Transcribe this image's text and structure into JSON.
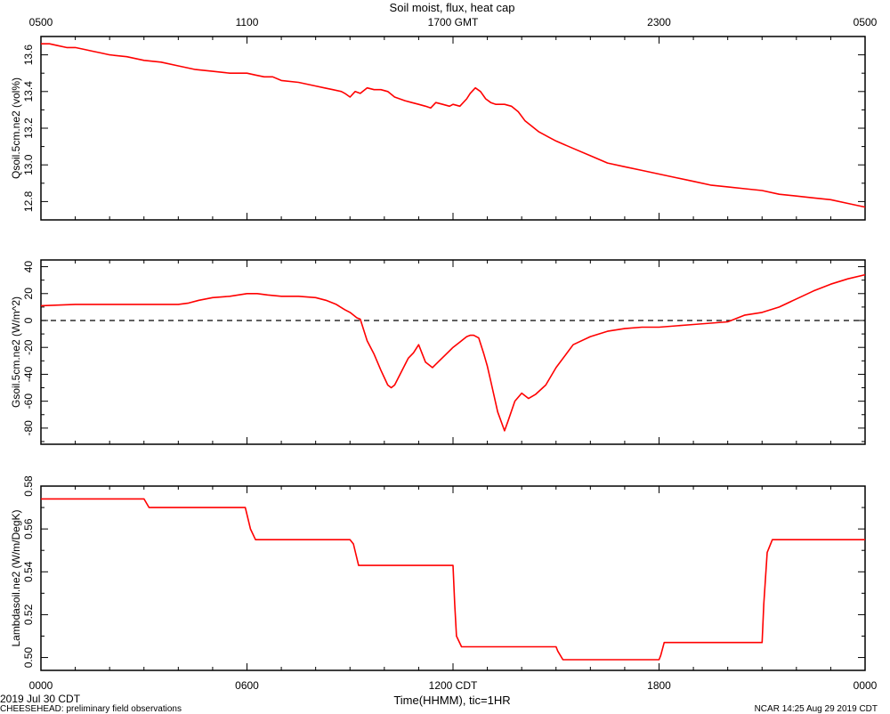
{
  "chart_data": [
    {
      "type": "line",
      "title": "Soil moist, flux, heat cap",
      "top_axis_ticks": [
        "0500",
        "1100",
        "1700 GMT",
        "2300",
        "0500"
      ],
      "ylabel": "Qsoil.5cm.ne2 (vol%)",
      "ylim": [
        12.7,
        13.7
      ],
      "yticks": [
        "12.8",
        "13.0",
        "13.2",
        "13.4",
        "13.6"
      ],
      "series": [
        {
          "color": "#ff0000",
          "x": [
            0,
            0.25,
            0.5,
            0.75,
            1,
            1.25,
            1.5,
            1.75,
            2,
            2.5,
            3,
            3.5,
            4,
            4.5,
            5,
            5.5,
            6,
            6.25,
            6.5,
            6.75,
            7,
            7.5,
            8,
            8.25,
            8.5,
            8.75,
            8.85,
            9.0,
            9.15,
            9.3,
            9.5,
            9.7,
            9.9,
            10.1,
            10.3,
            10.6,
            10.8,
            11.0,
            11.2,
            11.35,
            11.5,
            11.7,
            11.9,
            12.0,
            12.2,
            12.4,
            12.5,
            12.65,
            12.8,
            12.95,
            13.1,
            13.25,
            13.5,
            13.7,
            13.9,
            14.1,
            14.3,
            14.5,
            14.8,
            15,
            15.5,
            16,
            16.5,
            17,
            17.5,
            18,
            18.5,
            19,
            19.5,
            20,
            20.5,
            21,
            21.5,
            22,
            22.5,
            23,
            23.5,
            24
          ],
          "y": [
            13.66,
            13.66,
            13.65,
            13.64,
            13.64,
            13.63,
            13.62,
            13.61,
            13.6,
            13.59,
            13.57,
            13.56,
            13.54,
            13.52,
            13.51,
            13.5,
            13.5,
            13.49,
            13.48,
            13.48,
            13.46,
            13.45,
            13.43,
            13.42,
            13.41,
            13.4,
            13.39,
            13.37,
            13.4,
            13.39,
            13.42,
            13.41,
            13.41,
            13.4,
            13.37,
            13.35,
            13.34,
            13.33,
            13.32,
            13.31,
            13.34,
            13.33,
            13.32,
            13.33,
            13.32,
            13.36,
            13.39,
            13.42,
            13.4,
            13.36,
            13.34,
            13.33,
            13.33,
            13.32,
            13.29,
            13.24,
            13.21,
            13.18,
            13.15,
            13.13,
            13.09,
            13.05,
            13.01,
            12.99,
            12.97,
            12.95,
            12.93,
            12.91,
            12.89,
            12.88,
            12.87,
            12.86,
            12.84,
            12.83,
            12.82,
            12.81,
            12.79,
            12.77
          ]
        }
      ]
    },
    {
      "type": "line",
      "ylabel": "Gsoil.5cm.ne2 (W/m^2)",
      "ylim": [
        -92,
        45
      ],
      "yticks": [
        "-80",
        "-60",
        "-40",
        "-20",
        "0",
        "20",
        "40"
      ],
      "zero_line": true,
      "series": [
        {
          "color": "#ff0000",
          "x": [
            0,
            1,
            2,
            3,
            4,
            4.3,
            4.6,
            5.0,
            5.5,
            6.0,
            6.1,
            6.3,
            6.6,
            7.0,
            7.5,
            8.0,
            8.3,
            8.6,
            8.85,
            9.0,
            9.1,
            9.2,
            9.3,
            9.5,
            9.7,
            9.9,
            10.1,
            10.2,
            10.3,
            10.5,
            10.7,
            10.85,
            11.0,
            11.2,
            11.4,
            11.6,
            11.8,
            12.0,
            12.2,
            12.4,
            12.5,
            12.6,
            12.75,
            12.9,
            13.0,
            13.1,
            13.3,
            13.5,
            13.6,
            13.8,
            14.0,
            14.2,
            14.4,
            14.7,
            15.0,
            15.5,
            16.0,
            16.5,
            17.0,
            17.5,
            18.0,
            18.5,
            19.0,
            19.5,
            20.0,
            20.5,
            21.0,
            21.5,
            22.0,
            22.5,
            23.0,
            23.5,
            24
          ],
          "y": [
            11,
            12,
            12,
            12,
            12,
            13,
            15,
            17,
            18,
            20,
            20,
            20,
            19,
            18,
            18,
            17,
            15,
            12,
            8,
            6,
            4,
            2,
            1,
            -15,
            -25,
            -37,
            -48,
            -50,
            -48,
            -38,
            -28,
            -24,
            -18,
            -31,
            -35,
            -30,
            -25,
            -20,
            -16,
            -12,
            -11,
            -11,
            -13,
            -25,
            -34,
            -45,
            -68,
            -82,
            -75,
            -60,
            -54,
            -58,
            -55,
            -48,
            -35,
            -18,
            -12,
            -8,
            -6,
            -5,
            -5,
            -4,
            -3,
            -2,
            -1,
            4,
            6,
            10,
            16,
            22,
            27,
            31,
            34
          ]
        }
      ]
    },
    {
      "type": "line",
      "ylabel": "Lambdasoil.ne2 (W/m/DegK)",
      "ylim": [
        0.494,
        0.58
      ],
      "yticks": [
        "0.50",
        "0.52",
        "0.54",
        "0.56",
        "0.58"
      ],
      "xticks": [
        "0000",
        "0600",
        "1200 CDT",
        "1800",
        "0000"
      ],
      "xlabel": "Time(HHMM), tic=1HR",
      "series": [
        {
          "color": "#ff0000",
          "x": [
            0,
            3.0,
            3.15,
            3.3,
            5.95,
            6.1,
            6.25,
            9.0,
            9.1,
            9.25,
            12.0,
            12.05,
            12.1,
            12.25,
            15.0,
            15.05,
            15.2,
            18.0,
            18.05,
            18.15,
            21.0,
            21.05,
            21.15,
            21.3,
            24.0
          ],
          "y": [
            0.574,
            0.574,
            0.57,
            0.57,
            0.57,
            0.56,
            0.555,
            0.555,
            0.553,
            0.543,
            0.543,
            0.525,
            0.51,
            0.505,
            0.505,
            0.503,
            0.499,
            0.499,
            0.501,
            0.507,
            0.507,
            0.525,
            0.549,
            0.555,
            0.555
          ]
        }
      ]
    }
  ],
  "footer": {
    "date_label": "2019 Jul 30 CDT",
    "project_label": "CHEESEHEAD: preliminary field observations",
    "credit_label": "NCAR 14:25 Aug 29 2019 CDT"
  }
}
